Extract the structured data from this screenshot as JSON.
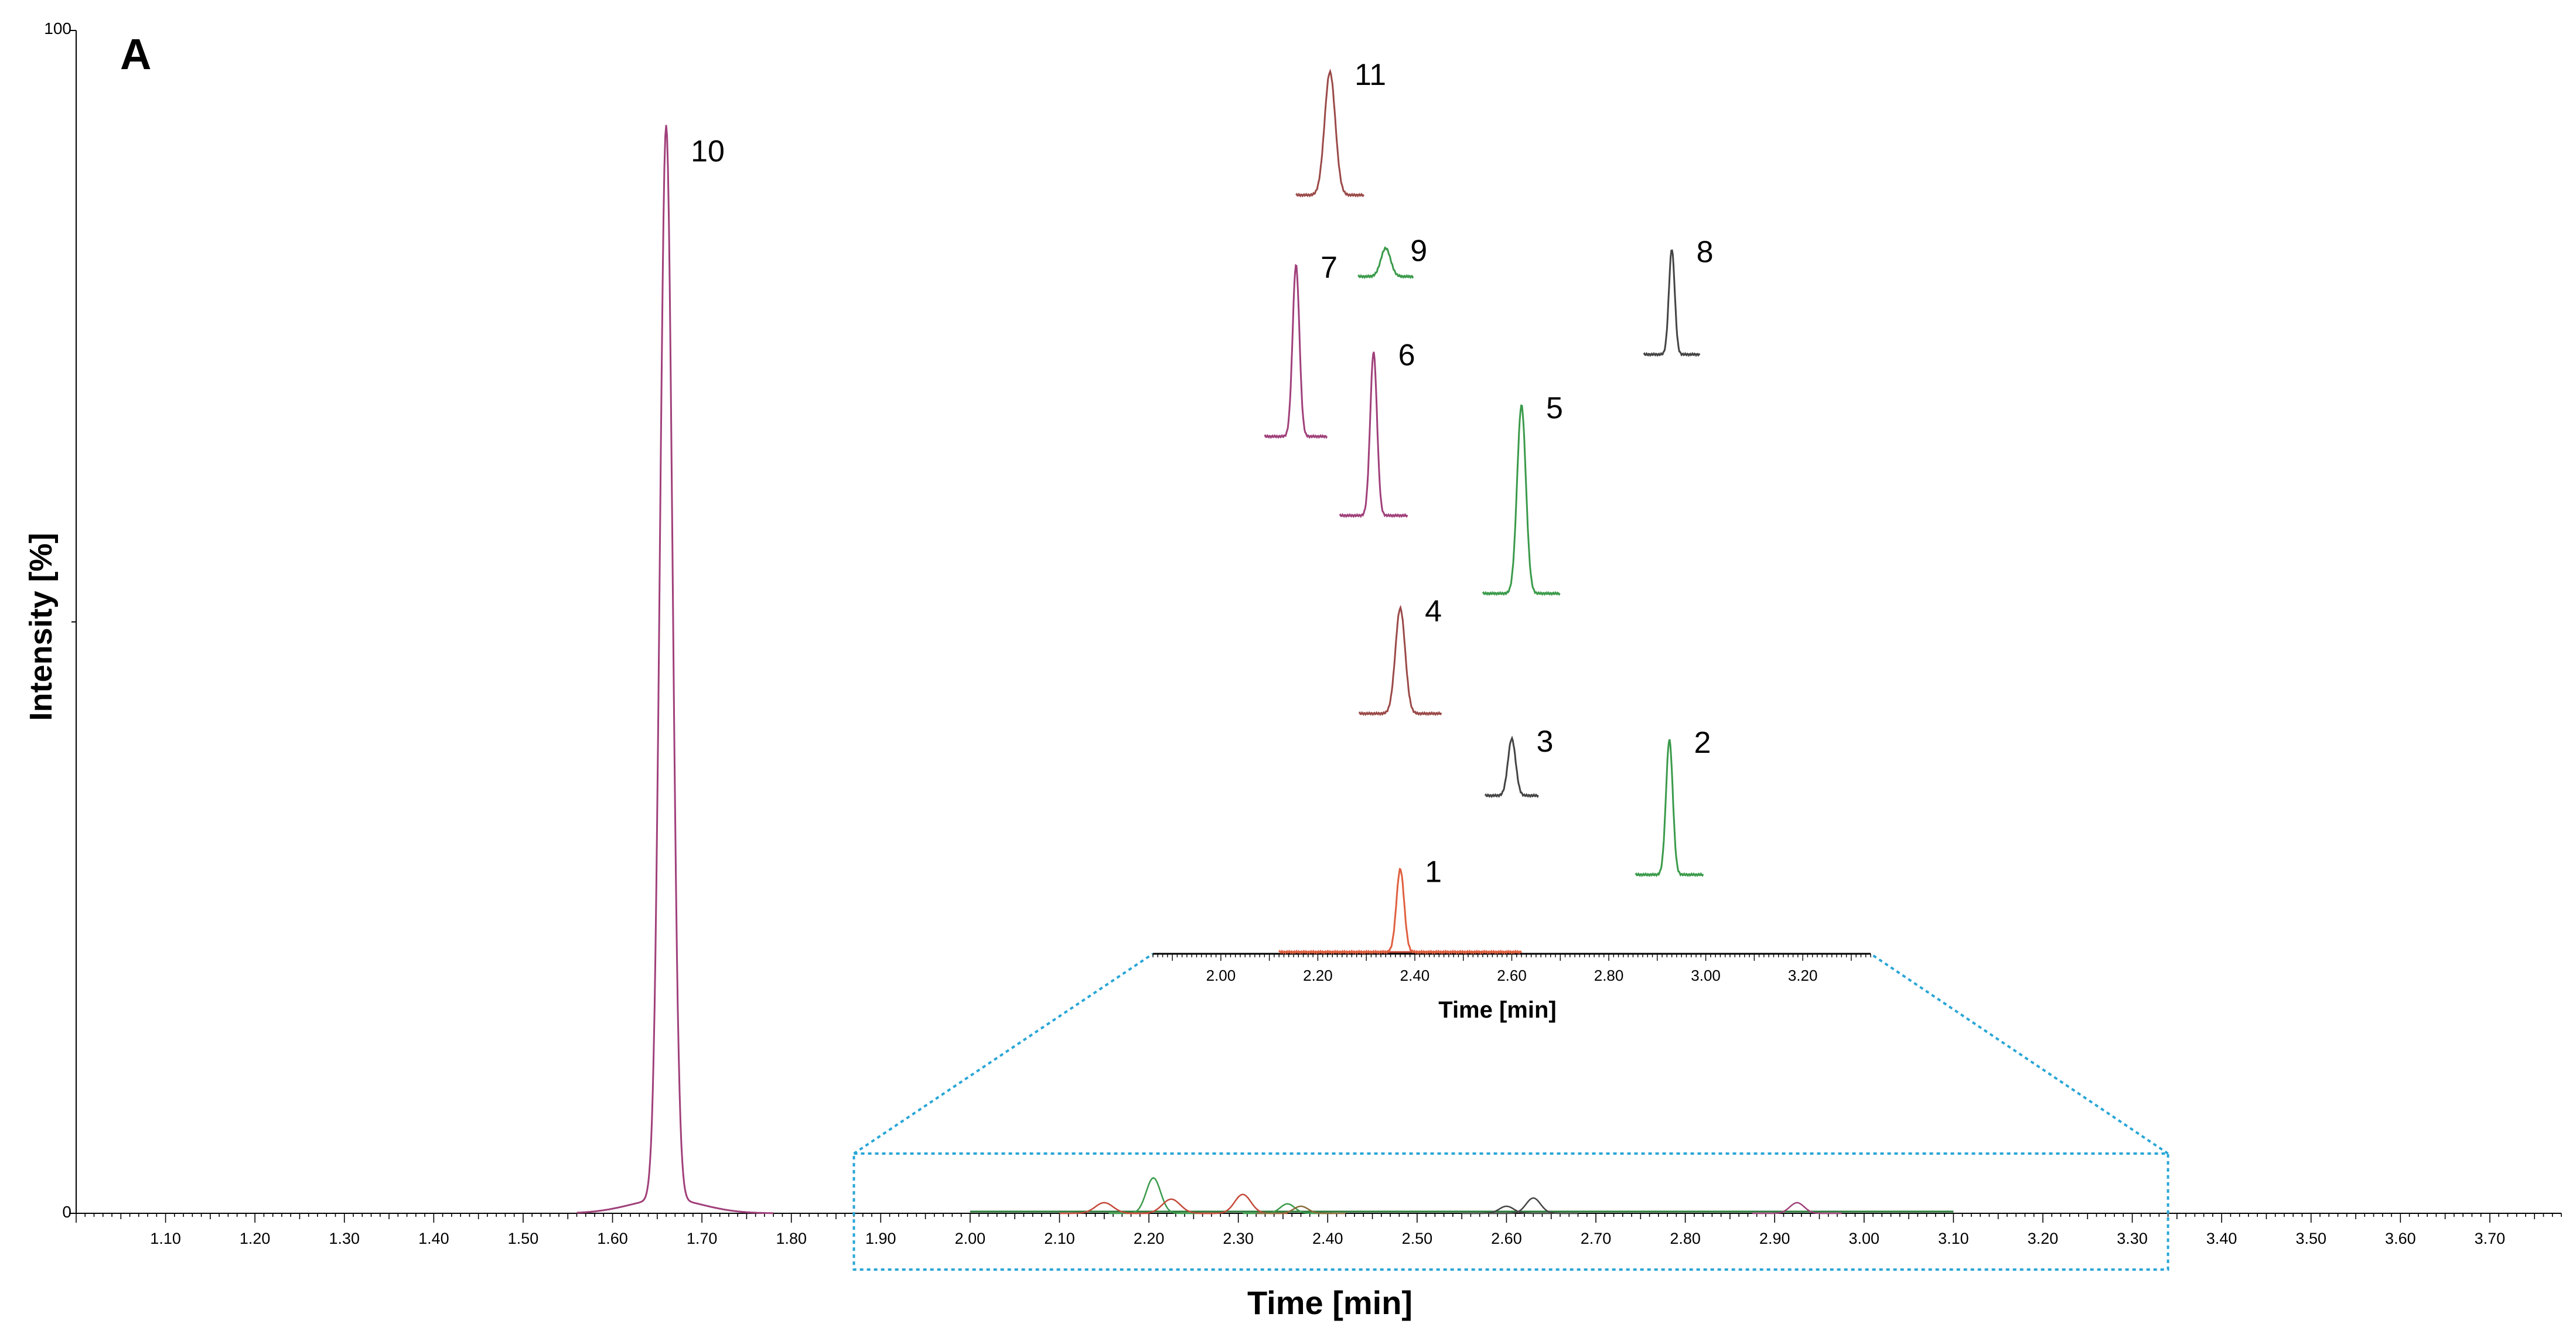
{
  "chart_data": {
    "type": "line",
    "panel_label": "A",
    "xlabel": "Time [min]",
    "ylabel": "Intensity [%]",
    "xlim": [
      1.0,
      3.78
    ],
    "ylim": [
      0,
      100
    ],
    "y_ticks": [
      {
        "value": 0,
        "label": "0"
      },
      {
        "value": 100,
        "label": "100"
      }
    ],
    "x_ticks": [
      "1.10",
      "1.20",
      "1.30",
      "1.40",
      "1.50",
      "1.60",
      "1.70",
      "1.80",
      "1.90",
      "2.00",
      "2.10",
      "2.20",
      "2.30",
      "2.40",
      "2.50",
      "2.60",
      "2.70",
      "2.80",
      "2.90",
      "3.00",
      "3.10",
      "3.20",
      "3.30",
      "3.40",
      "3.50",
      "3.60",
      "3.70"
    ],
    "main_series": [
      {
        "name": "10",
        "color": "#a0407a",
        "baseline_range": [
          1.56,
          1.78
        ],
        "peak_time": 1.66,
        "peak_height": 90.8,
        "sigma": 0.007
      }
    ],
    "overlay_traces": [
      {
        "color": "#3a9a4a",
        "peak_time": 2.205,
        "peak_height": 3.0,
        "sigma": 0.008
      },
      {
        "color": "#c44a3a",
        "peak_time": 2.15,
        "peak_height": 0.9,
        "sigma": 0.01
      },
      {
        "color": "#c44a3a",
        "peak_time": 2.225,
        "peak_height": 1.2,
        "sigma": 0.01
      },
      {
        "color": "#c44a3a",
        "peak_time": 2.305,
        "peak_height": 1.6,
        "sigma": 0.009
      },
      {
        "color": "#3a9a4a",
        "peak_time": 2.355,
        "peak_height": 0.8,
        "sigma": 0.008
      },
      {
        "color": "#8a6a3a",
        "peak_time": 2.37,
        "peak_height": 0.6,
        "sigma": 0.008
      },
      {
        "color": "#444444",
        "peak_time": 2.6,
        "peak_height": 0.6,
        "sigma": 0.008
      },
      {
        "color": "#444444",
        "peak_time": 2.63,
        "peak_height": 1.3,
        "sigma": 0.008
      },
      {
        "color": "#a0407a",
        "peak_time": 2.925,
        "peak_height": 0.9,
        "sigma": 0.008
      }
    ],
    "zoom_window": {
      "x_range": [
        1.87,
        3.34
      ],
      "color": "#29a6d6"
    },
    "inset": {
      "xlabel": "Time [min]",
      "x_ticks": [
        "2.00",
        "2.20",
        "2.40",
        "2.60",
        "2.80",
        "3.00",
        "3.20"
      ],
      "xlim": [
        1.86,
        3.34
      ],
      "peaks": [
        {
          "label": "1",
          "time": 2.37,
          "color": "#e06040",
          "height_pct": 7.0
        },
        {
          "label": "2",
          "time": 2.925,
          "color": "#3a9a4a",
          "height_pct": 11.4
        },
        {
          "label": "3",
          "time": 2.6,
          "color": "#444444",
          "height_pct": 4.8
        },
        {
          "label": "4",
          "time": 2.37,
          "color": "#9a4a48",
          "height_pct": 8.9
        },
        {
          "label": "5",
          "time": 2.62,
          "color": "#3a9a4a",
          "height_pct": 15.9
        },
        {
          "label": "6",
          "time": 2.315,
          "color": "#a0407a",
          "height_pct": 13.8
        },
        {
          "label": "7",
          "time": 2.155,
          "color": "#a0407a",
          "height_pct": 14.5
        },
        {
          "label": "8",
          "time": 2.93,
          "color": "#444444",
          "height_pct": 8.9
        },
        {
          "label": "9",
          "time": 2.34,
          "color": "#3a9a4a",
          "height_pct": 2.4
        },
        {
          "label": "11",
          "time": 2.225,
          "color": "#9a4a48",
          "height_pct": 10.4
        }
      ]
    }
  }
}
